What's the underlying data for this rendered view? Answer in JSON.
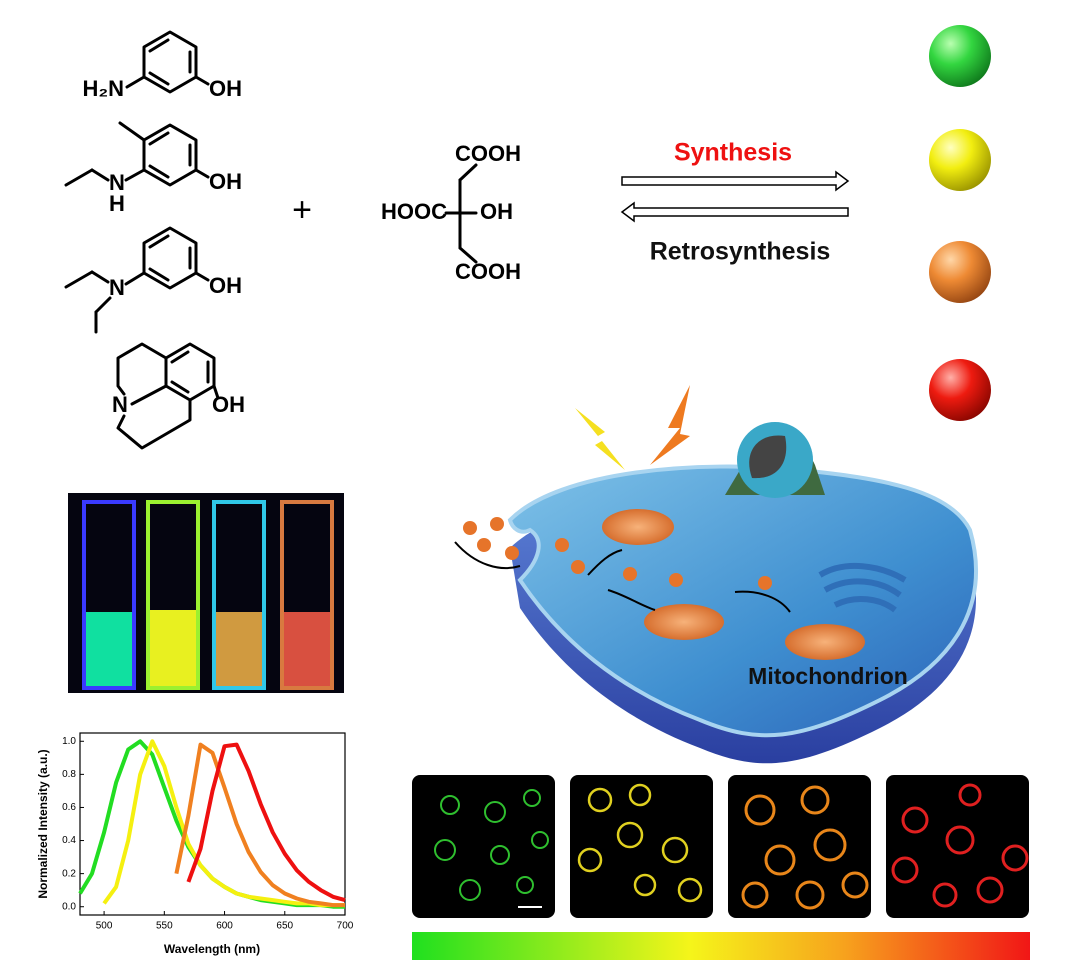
{
  "molecules": [
    {
      "labels": [
        "H₂N",
        "OH"
      ]
    },
    {
      "labels": [
        "N",
        "H",
        "OH"
      ]
    },
    {
      "labels": [
        "N",
        "OH"
      ]
    },
    {
      "labels": [
        "N",
        "OH"
      ]
    }
  ],
  "plus": "+",
  "citric_acid": {
    "labels": [
      "COOH",
      "HOOC",
      "OH",
      "COOH"
    ]
  },
  "arrows": {
    "forward": "Synthesis",
    "backward": "Retrosynthesis"
  },
  "cell": {
    "label": "Mitochondrion"
  },
  "chart_data": {
    "type": "line",
    "x_label": "Wavelength (nm)",
    "y_label": "Normalized Intensity (a.u.)",
    "x": [
      480,
      490,
      500,
      510,
      520,
      530,
      540,
      550,
      560,
      570,
      580,
      590,
      600,
      610,
      620,
      630,
      640,
      650,
      660,
      670,
      680,
      690,
      700
    ],
    "series": [
      {
        "color": "#22dd22",
        "values": [
          0.08,
          0.2,
          0.45,
          0.75,
          0.95,
          1.0,
          0.92,
          0.72,
          0.52,
          0.36,
          0.25,
          0.17,
          0.12,
          0.08,
          0.06,
          0.04,
          0.03,
          0.02,
          0.01,
          0.01,
          0.01,
          0.0,
          0.0
        ]
      },
      {
        "color": "#f5f010",
        "values": [
          null,
          null,
          0.02,
          0.12,
          0.4,
          0.8,
          1.0,
          0.85,
          0.6,
          0.38,
          0.25,
          0.17,
          0.12,
          0.08,
          0.06,
          0.05,
          0.04,
          0.03,
          0.02,
          0.02,
          0.01,
          0.01,
          0.01
        ]
      },
      {
        "color": "#f08020",
        "values": [
          null,
          null,
          null,
          null,
          null,
          null,
          null,
          null,
          0.2,
          0.55,
          0.98,
          0.93,
          0.72,
          0.5,
          0.33,
          0.21,
          0.13,
          0.08,
          0.05,
          0.03,
          0.02,
          0.01,
          0.01
        ]
      },
      {
        "color": "#ee1010",
        "values": [
          null,
          null,
          null,
          null,
          null,
          null,
          null,
          null,
          null,
          0.15,
          0.35,
          0.7,
          0.97,
          0.98,
          0.82,
          0.62,
          0.45,
          0.32,
          0.22,
          0.15,
          0.1,
          0.06,
          0.04
        ]
      }
    ],
    "xlim": [
      480,
      700
    ],
    "ylim": [
      -0.05,
      1.05
    ],
    "xticks": [
      500,
      550,
      600,
      650,
      700
    ],
    "yticks": [
      {
        "value": 0,
        "label": "0.0"
      },
      0.2,
      0.4,
      0.6,
      0.8,
      {
        "value": 1,
        "label": "1.0"
      }
    ]
  }
}
